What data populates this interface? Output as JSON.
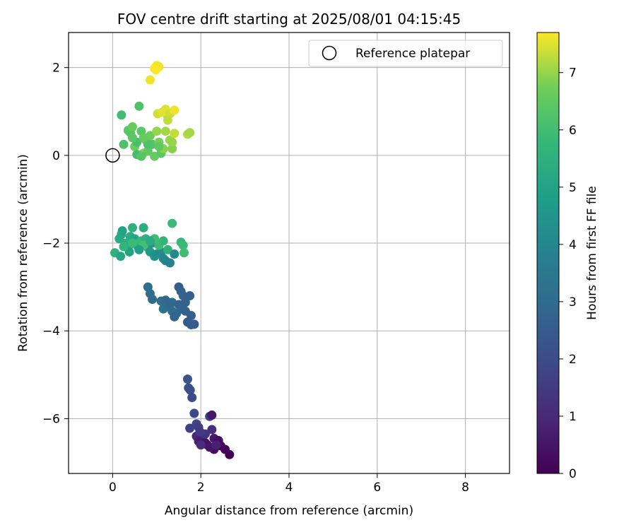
{
  "chart_data": {
    "type": "scatter",
    "title": "FOV centre drift starting at 2025/08/01 04:15:45",
    "xlabel": "Angular distance from reference (arcmin)",
    "ylabel": "Rotation from reference (arcmin)",
    "xlim": [
      -1,
      9
    ],
    "ylim": [
      -7.25,
      2.8
    ],
    "xticks": [
      0,
      2,
      4,
      6,
      8
    ],
    "yticks": [
      2,
      0,
      -2,
      -4,
      -6
    ],
    "grid": true,
    "legend": {
      "placement": "top-right",
      "entries": [
        "Reference platepar"
      ]
    },
    "colorbar": {
      "label": "Hours from first FF file",
      "range": [
        0,
        7.7
      ],
      "ticks": [
        0,
        1,
        2,
        3,
        4,
        5,
        6,
        7
      ],
      "colormap": "viridis"
    },
    "reference_point": {
      "x": 0,
      "y": 0
    },
    "series": [
      {
        "points": [
          {
            "x": 1.7,
            "y": -5.1,
            "c": 2.3
          },
          {
            "x": 1.72,
            "y": -5.3,
            "c": 2.2
          },
          {
            "x": 1.76,
            "y": -5.35,
            "c": 2.1
          },
          {
            "x": 1.8,
            "y": -5.52,
            "c": 2.0
          },
          {
            "x": 1.85,
            "y": -5.88,
            "c": 1.9
          },
          {
            "x": 1.9,
            "y": -6.12,
            "c": 1.8
          },
          {
            "x": 1.75,
            "y": -6.22,
            "c": 1.7
          },
          {
            "x": 1.95,
            "y": -6.2,
            "c": 1.6
          },
          {
            "x": 2.2,
            "y": -5.95,
            "c": 1.6
          },
          {
            "x": 2.25,
            "y": -5.92,
            "c": 0.5
          },
          {
            "x": 2.25,
            "y": -6.25,
            "c": 1.2
          },
          {
            "x": 1.9,
            "y": -6.4,
            "c": 1.0
          },
          {
            "x": 2.0,
            "y": -6.45,
            "c": 0.9
          },
          {
            "x": 1.95,
            "y": -6.52,
            "c": 0.7
          },
          {
            "x": 2.1,
            "y": -6.55,
            "c": 0.5
          },
          {
            "x": 2.15,
            "y": -6.6,
            "c": 0.4
          },
          {
            "x": 2.3,
            "y": -6.45,
            "c": 0.6
          },
          {
            "x": 2.4,
            "y": -6.5,
            "c": 0.3
          },
          {
            "x": 2.45,
            "y": -6.62,
            "c": 0.2
          },
          {
            "x": 2.3,
            "y": -6.7,
            "c": 0.3
          },
          {
            "x": 2.2,
            "y": -6.65,
            "c": 0.5
          },
          {
            "x": 2.55,
            "y": -6.7,
            "c": 0.15
          },
          {
            "x": 2.65,
            "y": -6.82,
            "c": 0.05
          },
          {
            "x": 2.0,
            "y": -6.6,
            "c": 1.1
          },
          {
            "x": 2.1,
            "y": -6.35,
            "c": 1.3
          },
          {
            "x": 1.98,
            "y": -6.3,
            "c": 1.5
          },
          {
            "x": 2.35,
            "y": -6.6,
            "c": 0.8
          },
          {
            "x": 0.8,
            "y": -3.0,
            "c": 3.2
          },
          {
            "x": 0.85,
            "y": -3.15,
            "c": 3.1
          },
          {
            "x": 0.9,
            "y": -3.28,
            "c": 3.0
          },
          {
            "x": 1.1,
            "y": -3.32,
            "c": 3.1
          },
          {
            "x": 1.2,
            "y": -3.3,
            "c": 2.9
          },
          {
            "x": 1.35,
            "y": -3.35,
            "c": 3.0
          },
          {
            "x": 1.5,
            "y": -3.0,
            "c": 2.5
          },
          {
            "x": 1.55,
            "y": -3.1,
            "c": 2.6
          },
          {
            "x": 1.6,
            "y": -3.2,
            "c": 2.7
          },
          {
            "x": 1.75,
            "y": -3.2,
            "c": 2.6
          },
          {
            "x": 1.65,
            "y": -3.35,
            "c": 2.7
          },
          {
            "x": 1.15,
            "y": -3.5,
            "c": 3.3
          },
          {
            "x": 1.25,
            "y": -3.45,
            "c": 3.2
          },
          {
            "x": 1.35,
            "y": -3.55,
            "c": 3.0
          },
          {
            "x": 1.45,
            "y": -3.6,
            "c": 2.9
          },
          {
            "x": 1.4,
            "y": -3.68,
            "c": 2.8
          },
          {
            "x": 1.55,
            "y": -3.5,
            "c": 2.8
          },
          {
            "x": 1.65,
            "y": -3.55,
            "c": 2.7
          },
          {
            "x": 1.78,
            "y": -3.65,
            "c": 2.6
          },
          {
            "x": 1.7,
            "y": -3.8,
            "c": 2.5
          },
          {
            "x": 1.85,
            "y": -3.85,
            "c": 2.4
          },
          {
            "x": 1.78,
            "y": -3.86,
            "c": 2.5
          },
          {
            "x": 1.3,
            "y": -3.4,
            "c": 2.9
          },
          {
            "x": 1.5,
            "y": -3.4,
            "c": 2.8
          },
          {
            "x": 0.05,
            "y": -2.22,
            "c": 5.6
          },
          {
            "x": 0.15,
            "y": -1.9,
            "c": 5.3
          },
          {
            "x": 0.2,
            "y": -1.8,
            "c": 5.2
          },
          {
            "x": 0.22,
            "y": -1.72,
            "c": 5.0
          },
          {
            "x": 0.18,
            "y": -2.3,
            "c": 5.1
          },
          {
            "x": 0.3,
            "y": -2.0,
            "c": 5.4
          },
          {
            "x": 0.35,
            "y": -2.1,
            "c": 5.2
          },
          {
            "x": 0.38,
            "y": -2.2,
            "c": 5.0
          },
          {
            "x": 0.4,
            "y": -1.85,
            "c": 5.3
          },
          {
            "x": 0.45,
            "y": -1.65,
            "c": 5.5
          },
          {
            "x": 0.5,
            "y": -1.9,
            "c": 5.1
          },
          {
            "x": 0.55,
            "y": -2.05,
            "c": 5.0
          },
          {
            "x": 0.6,
            "y": -2.0,
            "c": 5.6
          },
          {
            "x": 0.65,
            "y": -1.95,
            "c": 5.8
          },
          {
            "x": 0.7,
            "y": -1.65,
            "c": 5.4
          },
          {
            "x": 0.75,
            "y": -1.9,
            "c": 5.5
          },
          {
            "x": 0.8,
            "y": -2.1,
            "c": 4.8
          },
          {
            "x": 0.85,
            "y": -2.2,
            "c": 4.6
          },
          {
            "x": 0.9,
            "y": -2.0,
            "c": 4.5
          },
          {
            "x": 0.95,
            "y": -2.3,
            "c": 4.4
          },
          {
            "x": 1.0,
            "y": -2.25,
            "c": 4.3
          },
          {
            "x": 1.1,
            "y": -2.2,
            "c": 4.2
          },
          {
            "x": 1.15,
            "y": -2.35,
            "c": 4.0
          },
          {
            "x": 1.2,
            "y": -2.4,
            "c": 3.9
          },
          {
            "x": 1.3,
            "y": -2.45,
            "c": 3.8
          },
          {
            "x": 1.05,
            "y": -2.05,
            "c": 5.9
          },
          {
            "x": 1.15,
            "y": -1.95,
            "c": 5.7
          },
          {
            "x": 1.25,
            "y": -2.15,
            "c": 5.6
          },
          {
            "x": 1.35,
            "y": -1.55,
            "c": 5.9
          },
          {
            "x": 1.55,
            "y": -1.98,
            "c": 5.8
          },
          {
            "x": 1.6,
            "y": -2.05,
            "c": 5.9
          },
          {
            "x": 1.62,
            "y": -2.22,
            "c": 6.0
          },
          {
            "x": 0.7,
            "y": -2.05,
            "c": 6.1
          },
          {
            "x": 0.95,
            "y": -1.9,
            "c": 6.0
          },
          {
            "x": 0.25,
            "y": -2.08,
            "c": 5.7
          },
          {
            "x": 0.85,
            "y": -1.95,
            "c": 5.3
          },
          {
            "x": 0.45,
            "y": -2.0,
            "c": 5.9
          },
          {
            "x": 1.4,
            "y": -2.25,
            "c": 4.1
          },
          {
            "x": 0.6,
            "y": -2.15,
            "c": 4.9
          },
          {
            "x": 0.2,
            "y": 0.92,
            "c": 6.0
          },
          {
            "x": 0.25,
            "y": 0.25,
            "c": 6.2
          },
          {
            "x": 0.35,
            "y": 0.57,
            "c": 6.5
          },
          {
            "x": 0.4,
            "y": 0.52,
            "c": 6.3
          },
          {
            "x": 0.45,
            "y": 0.65,
            "c": 6.6
          },
          {
            "x": 0.5,
            "y": 0.2,
            "c": 6.7
          },
          {
            "x": 0.55,
            "y": 0.3,
            "c": 6.1
          },
          {
            "x": 0.6,
            "y": 1.12,
            "c": 6.2
          },
          {
            "x": 0.65,
            "y": 0.55,
            "c": 6.4
          },
          {
            "x": 0.7,
            "y": 0.05,
            "c": 6.9
          },
          {
            "x": 0.75,
            "y": 0.35,
            "c": 6.8
          },
          {
            "x": 0.8,
            "y": 0.1,
            "c": 6.5
          },
          {
            "x": 0.85,
            "y": 0.45,
            "c": 6.7
          },
          {
            "x": 0.9,
            "y": 0.25,
            "c": 6.3
          },
          {
            "x": 0.95,
            "y": -0.02,
            "c": 6.6
          },
          {
            "x": 1.0,
            "y": 0.55,
            "c": 7.0
          },
          {
            "x": 1.05,
            "y": 0.3,
            "c": 6.8
          },
          {
            "x": 1.1,
            "y": 0.05,
            "c": 6.4
          },
          {
            "x": 1.15,
            "y": 0.15,
            "c": 6.9
          },
          {
            "x": 1.2,
            "y": 0.55,
            "c": 7.1
          },
          {
            "x": 1.25,
            "y": 0.9,
            "c": 7.2
          },
          {
            "x": 1.3,
            "y": 0.35,
            "c": 7.0
          },
          {
            "x": 1.35,
            "y": 0.15,
            "c": 6.9
          },
          {
            "x": 1.4,
            "y": 0.5,
            "c": 7.3
          },
          {
            "x": 1.02,
            "y": 0.95,
            "c": 7.4
          },
          {
            "x": 1.12,
            "y": 0.98,
            "c": 7.5
          },
          {
            "x": 1.2,
            "y": 1.05,
            "c": 7.5
          },
          {
            "x": 1.3,
            "y": 0.95,
            "c": 7.4
          },
          {
            "x": 1.4,
            "y": 1.03,
            "c": 7.6
          },
          {
            "x": 1.25,
            "y": 0.8,
            "c": 7.3
          },
          {
            "x": 1.7,
            "y": 0.48,
            "c": 7.2
          },
          {
            "x": 1.75,
            "y": 0.52,
            "c": 7.1
          },
          {
            "x": 0.85,
            "y": 1.72,
            "c": 7.6
          },
          {
            "x": 0.95,
            "y": 1.98,
            "c": 7.7
          },
          {
            "x": 1.0,
            "y": 2.05,
            "c": 7.7
          },
          {
            "x": 1.05,
            "y": 2.02,
            "c": 7.6
          },
          {
            "x": 0.98,
            "y": 1.95,
            "c": 7.7
          },
          {
            "x": 0.55,
            "y": 0.02,
            "c": 6.0
          },
          {
            "x": 0.65,
            "y": -0.02,
            "c": 6.3
          },
          {
            "x": 0.8,
            "y": 0.25,
            "c": 6.2
          },
          {
            "x": 1.05,
            "y": 0.2,
            "c": 6.5
          },
          {
            "x": 1.35,
            "y": 0.3,
            "c": 7.0
          },
          {
            "x": 0.45,
            "y": 0.4,
            "c": 6.4
          },
          {
            "x": 0.7,
            "y": 0.4,
            "c": 6.6
          }
        ]
      }
    ]
  }
}
